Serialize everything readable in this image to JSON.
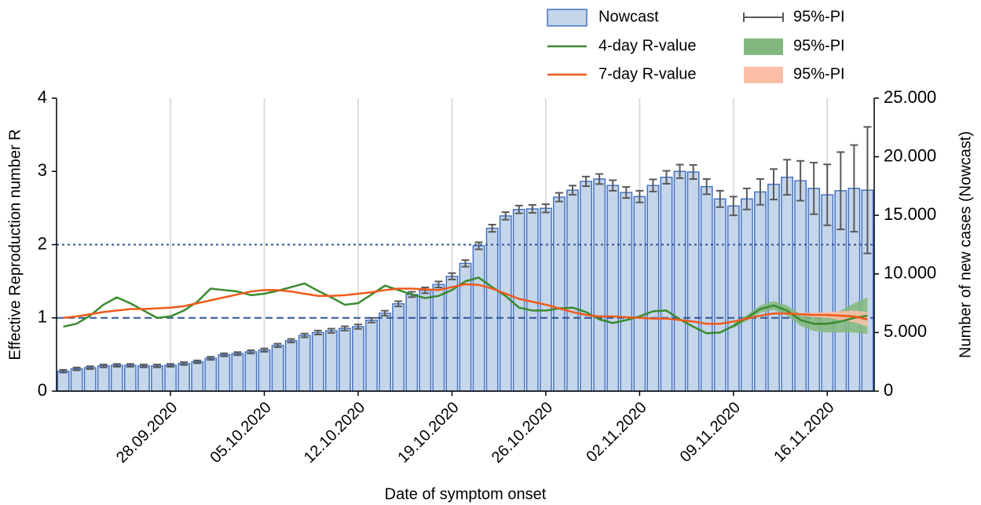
{
  "chart_data": {
    "type": "combo",
    "x_label": "Date of symptom onset",
    "y_label": "Effective Reproduction number R",
    "y2_label": "Number of new cases (Nowcast)",
    "categories": [
      null,
      null,
      null,
      null,
      null,
      null,
      null,
      null,
      "28.09.2020",
      null,
      null,
      null,
      null,
      null,
      null,
      "05.10.2020",
      null,
      null,
      null,
      null,
      null,
      null,
      "12.10.2020",
      null,
      null,
      null,
      null,
      null,
      null,
      "19.10.2020",
      null,
      null,
      null,
      null,
      null,
      null,
      "26.10.2020",
      null,
      null,
      null,
      null,
      null,
      null,
      "02.11.2020",
      null,
      null,
      null,
      null,
      null,
      null,
      "09.11.2020",
      null,
      null,
      null,
      null,
      null,
      null,
      "16.11.2020",
      null,
      null,
      null
    ],
    "ylim": [
      0,
      4
    ],
    "yticks": [
      0,
      1,
      2,
      3,
      4
    ],
    "y2lim": [
      0,
      25000
    ],
    "y2ticks": [
      0,
      {
        "value": 5000,
        "label": "5.000"
      },
      {
        "value": 10000,
        "label": "10.000"
      },
      {
        "value": 15000,
        "label": "15.000"
      },
      {
        "value": 20000,
        "label": "20.000"
      },
      {
        "value": 25000,
        "label": "25.000"
      }
    ],
    "grid_x": true,
    "hlines": [
      {
        "value": 1,
        "style": "dashed",
        "color": "#2f5597"
      },
      {
        "value": 2,
        "style": "dotted",
        "color": "#2f5597"
      }
    ],
    "series": [
      {
        "name": "Nowcast",
        "type": "bar",
        "axis": "y2",
        "color": "#c5d6ea",
        "edge_color": "#4472c4",
        "values": [
          1700,
          1900,
          2000,
          2150,
          2200,
          2200,
          2150,
          2150,
          2200,
          2350,
          2500,
          2800,
          3100,
          3200,
          3350,
          3500,
          3900,
          4300,
          4750,
          5000,
          5150,
          5350,
          5500,
          6050,
          6650,
          7450,
          8250,
          8600,
          9100,
          9800,
          10900,
          12400,
          13900,
          14950,
          15500,
          15550,
          15600,
          16550,
          17150,
          17900,
          18100,
          17550,
          16950,
          16600,
          17550,
          18250,
          18750,
          18700,
          17450,
          16400,
          15800,
          16400,
          17000,
          17650,
          18250,
          17950,
          17300,
          16750,
          17100,
          17300,
          17150
        ],
        "error": [
          120,
          120,
          120,
          120,
          120,
          120,
          120,
          120,
          120,
          120,
          120,
          130,
          130,
          130,
          140,
          140,
          150,
          150,
          160,
          170,
          180,
          180,
          190,
          200,
          210,
          220,
          230,
          250,
          260,
          270,
          280,
          300,
          310,
          320,
          330,
          340,
          350,
          370,
          390,
          410,
          430,
          450,
          470,
          500,
          520,
          550,
          580,
          600,
          650,
          700,
          800,
          900,
          1100,
          1300,
          1500,
          1700,
          2200,
          2600,
          3300,
          3700,
          5400
        ],
        "error_name": "95%-PI",
        "error_color": "#595959"
      },
      {
        "name": "4-day R-value",
        "type": "line",
        "axis": "y",
        "color": "#3a8a2e",
        "values": [
          0.88,
          0.92,
          1.03,
          1.18,
          1.28,
          1.2,
          1.1,
          1.0,
          1.02,
          1.1,
          1.22,
          1.4,
          1.38,
          1.36,
          1.31,
          1.33,
          1.37,
          1.42,
          1.47,
          1.37,
          1.28,
          1.18,
          1.2,
          1.32,
          1.44,
          1.38,
          1.32,
          1.27,
          1.3,
          1.38,
          1.5,
          1.55,
          1.42,
          1.3,
          1.14,
          1.1,
          1.1,
          1.13,
          1.14,
          1.08,
          0.98,
          0.93,
          0.97,
          1.02,
          1.09,
          1.1,
          0.98,
          0.88,
          0.79,
          0.8,
          0.89,
          1.0,
          1.12,
          1.17,
          1.1,
          0.97,
          0.92,
          0.92,
          0.95,
          1.0,
          1.03
        ],
        "lower": [
          null,
          null,
          null,
          null,
          null,
          null,
          null,
          null,
          null,
          null,
          null,
          null,
          null,
          null,
          null,
          null,
          null,
          null,
          null,
          null,
          null,
          null,
          null,
          null,
          null,
          null,
          null,
          null,
          null,
          null,
          null,
          null,
          null,
          null,
          null,
          null,
          null,
          null,
          null,
          null,
          null,
          null,
          null,
          null,
          null,
          null,
          null,
          null,
          null,
          null,
          0.86,
          0.96,
          1.07,
          1.11,
          1.03,
          0.89,
          0.82,
          0.8,
          0.8,
          0.8,
          0.78
        ],
        "upper": [
          null,
          null,
          null,
          null,
          null,
          null,
          null,
          null,
          null,
          null,
          null,
          null,
          null,
          null,
          null,
          null,
          null,
          null,
          null,
          null,
          null,
          null,
          null,
          null,
          null,
          null,
          null,
          null,
          null,
          null,
          null,
          null,
          null,
          null,
          null,
          null,
          null,
          null,
          null,
          null,
          null,
          null,
          null,
          null,
          null,
          null,
          null,
          null,
          null,
          null,
          0.92,
          1.04,
          1.17,
          1.23,
          1.17,
          1.05,
          1.02,
          1.04,
          1.1,
          1.2,
          1.28
        ],
        "band_name": "95%-PI",
        "band_color": "#82b87c"
      },
      {
        "name": "7-day R-value",
        "type": "line",
        "axis": "y",
        "color": "#f05a1a",
        "values": [
          1.0,
          1.02,
          1.05,
          1.08,
          1.1,
          1.12,
          1.12,
          1.13,
          1.14,
          1.16,
          1.2,
          1.24,
          1.28,
          1.32,
          1.36,
          1.38,
          1.38,
          1.36,
          1.33,
          1.3,
          1.3,
          1.31,
          1.33,
          1.35,
          1.38,
          1.4,
          1.4,
          1.39,
          1.38,
          1.42,
          1.46,
          1.45,
          1.4,
          1.33,
          1.26,
          1.22,
          1.18,
          1.13,
          1.08,
          1.04,
          1.02,
          1.02,
          1.01,
          1.0,
          0.99,
          0.99,
          0.97,
          0.95,
          0.92,
          0.92,
          0.95,
          0.99,
          1.03,
          1.06,
          1.06,
          1.05,
          1.04,
          1.04,
          1.03,
          1.02,
          0.98
        ],
        "lower": [
          null,
          null,
          null,
          null,
          null,
          null,
          null,
          null,
          null,
          null,
          null,
          null,
          null,
          null,
          null,
          null,
          null,
          null,
          null,
          null,
          null,
          null,
          null,
          null,
          null,
          null,
          null,
          null,
          null,
          null,
          null,
          null,
          null,
          null,
          null,
          null,
          null,
          null,
          null,
          null,
          null,
          null,
          null,
          null,
          null,
          null,
          null,
          null,
          null,
          null,
          null,
          null,
          null,
          null,
          null,
          1.03,
          1.01,
          1.0,
          0.97,
          0.94,
          0.88
        ],
        "upper": [
          null,
          null,
          null,
          null,
          null,
          null,
          null,
          null,
          null,
          null,
          null,
          null,
          null,
          null,
          null,
          null,
          null,
          null,
          null,
          null,
          null,
          null,
          null,
          null,
          null,
          null,
          null,
          null,
          null,
          null,
          null,
          null,
          null,
          null,
          null,
          null,
          null,
          null,
          null,
          null,
          null,
          null,
          null,
          null,
          null,
          null,
          null,
          null,
          null,
          null,
          null,
          null,
          null,
          null,
          null,
          1.07,
          1.07,
          1.08,
          1.09,
          1.1,
          1.08
        ],
        "band_name": "95%-PI",
        "band_color": "#fcbfa6"
      }
    ]
  }
}
